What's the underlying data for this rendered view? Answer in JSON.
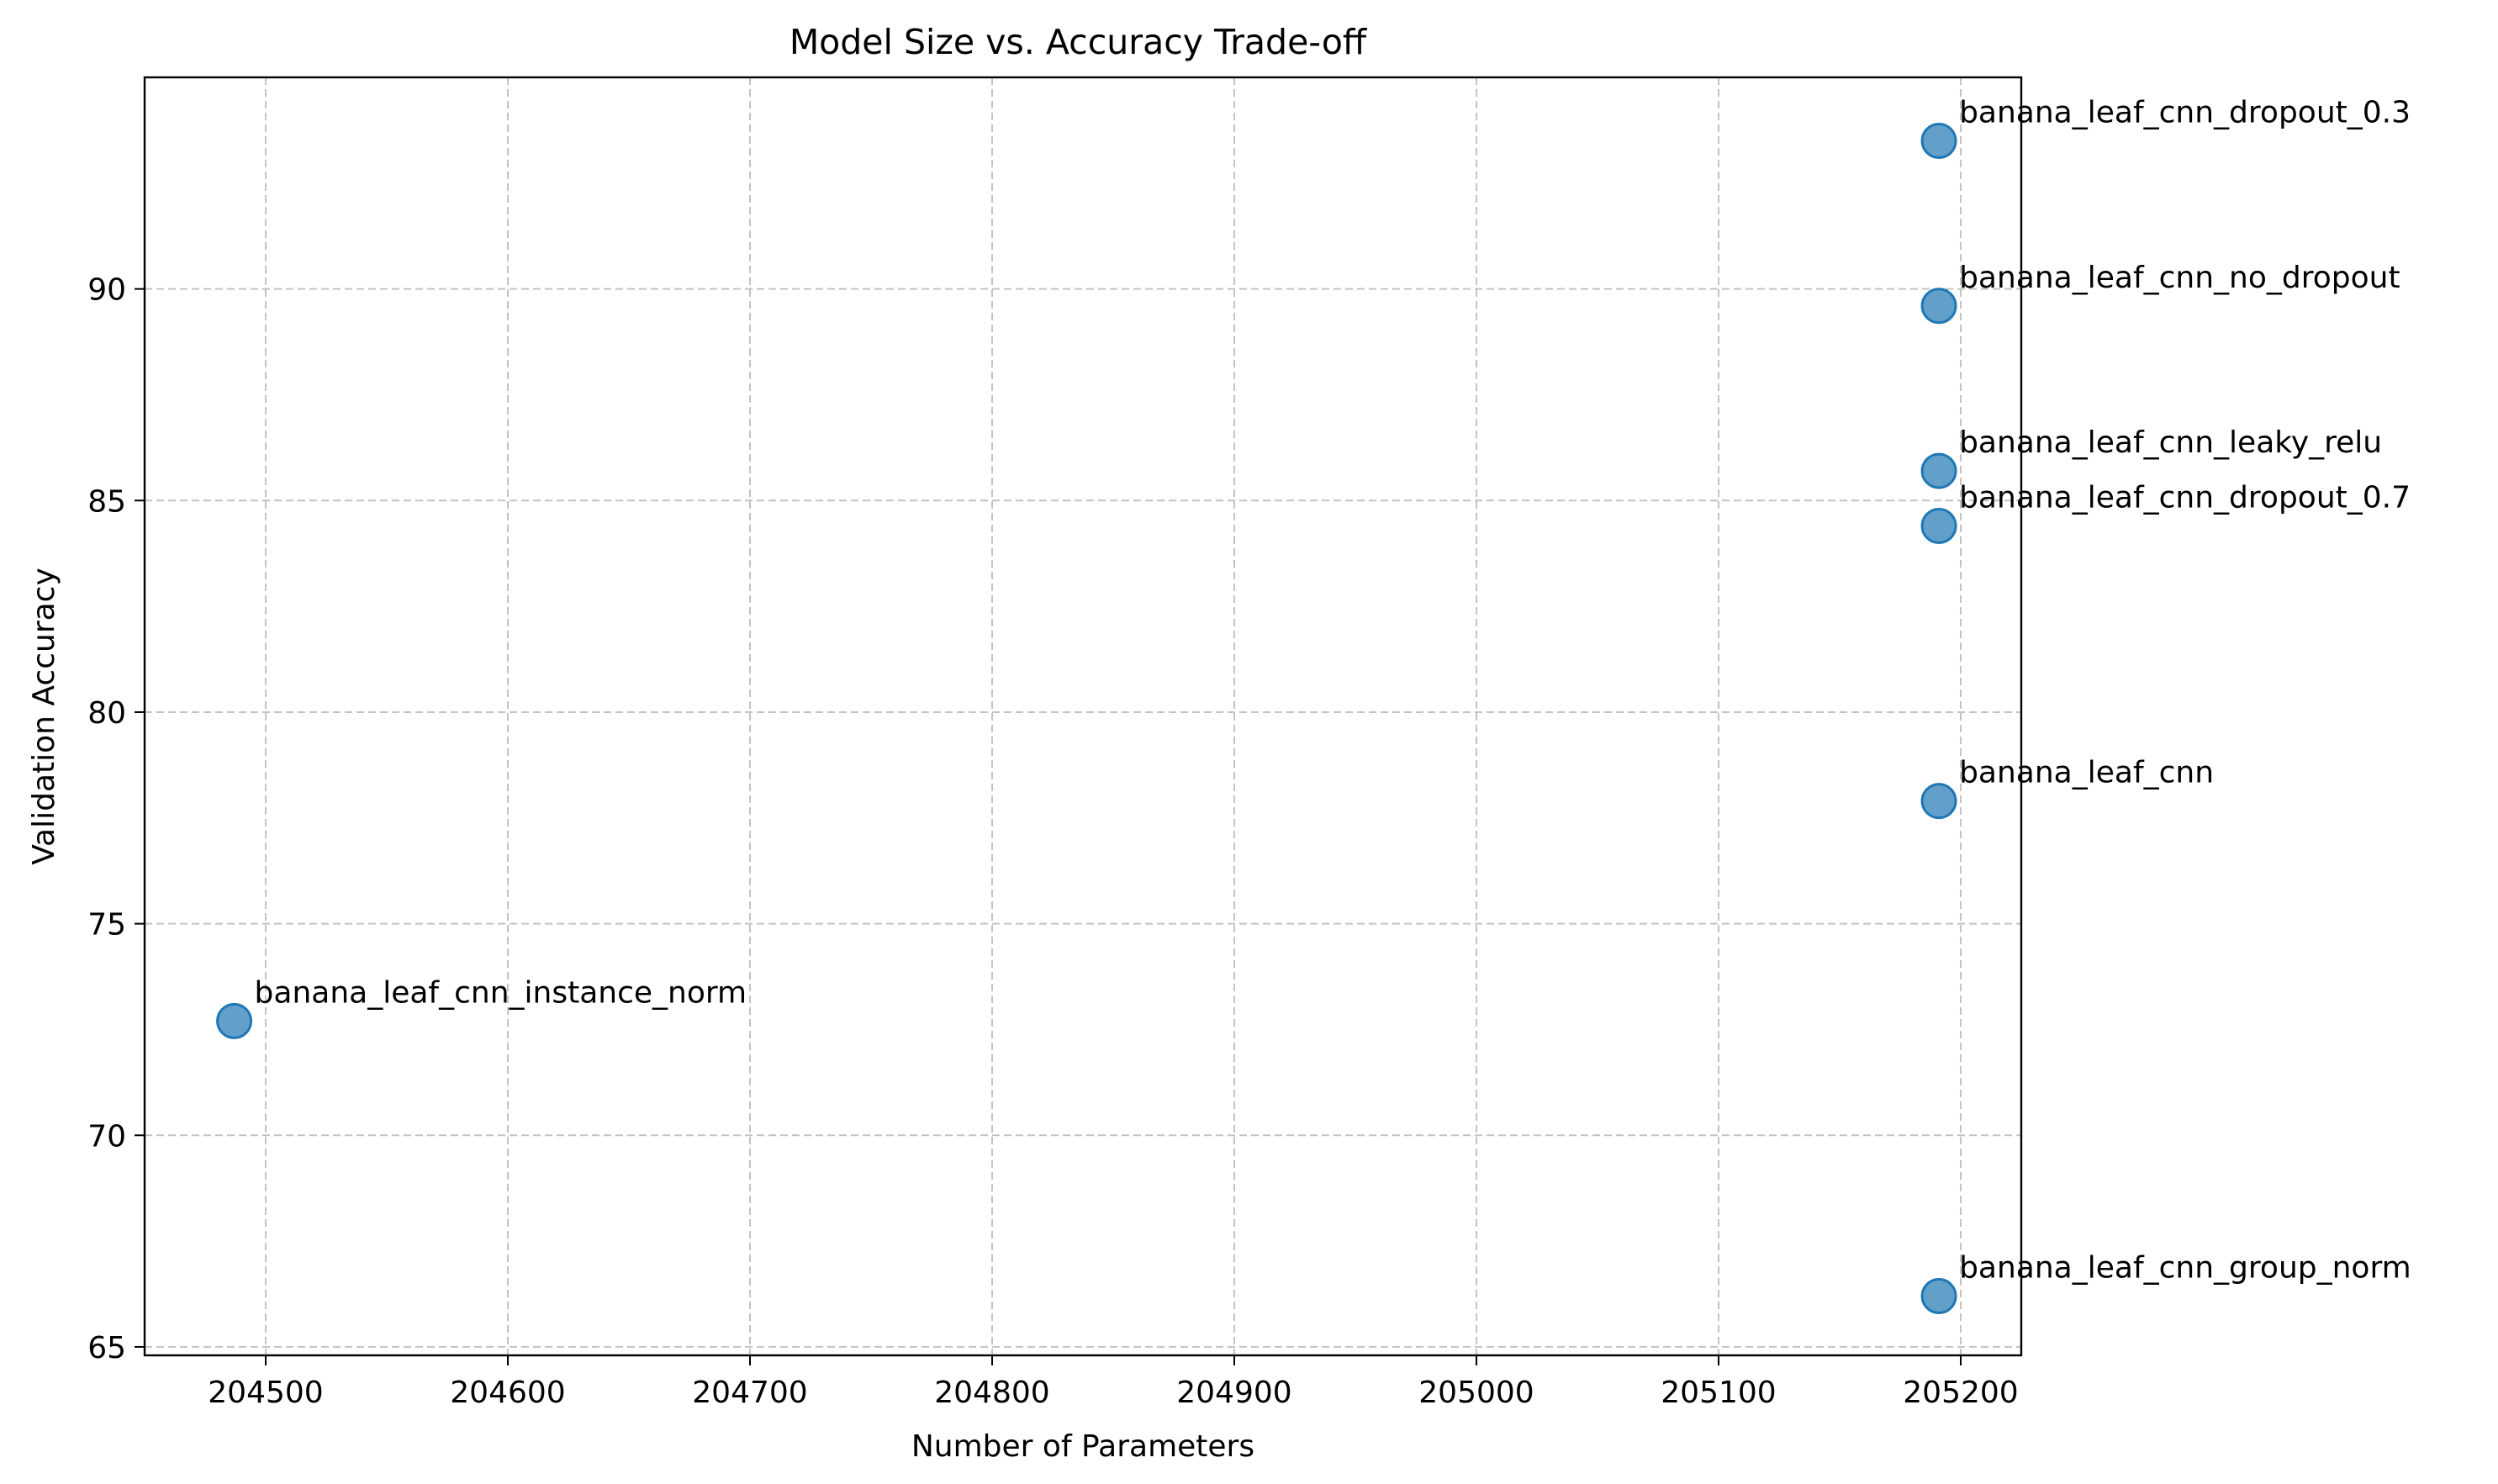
{
  "chart_data": {
    "type": "scatter",
    "title": "Model Size vs. Accuracy Trade-off",
    "xlabel": "Number of Parameters",
    "ylabel": "Validation Accuracy",
    "xlim": [
      204450,
      205225
    ],
    "ylim": [
      64.8,
      95.0
    ],
    "xticks": [
      204500,
      204600,
      204700,
      204800,
      204900,
      205000,
      205100,
      205200
    ],
    "yticks": [
      65,
      70,
      75,
      80,
      85,
      90
    ],
    "grid": true,
    "marker_color": "#1f77b4",
    "points": [
      {
        "label": "banana_leaf_cnn_dropout_0.3",
        "x": 205191,
        "y": 93.5
      },
      {
        "label": "banana_leaf_cnn_no_dropout",
        "x": 205191,
        "y": 89.6
      },
      {
        "label": "banana_leaf_cnn_leaky_relu",
        "x": 205191,
        "y": 85.7
      },
      {
        "label": "banana_leaf_cnn_dropout_0.7",
        "x": 205191,
        "y": 84.4
      },
      {
        "label": "banana_leaf_cnn",
        "x": 205191,
        "y": 77.9
      },
      {
        "label": "banana_leaf_cnn_instance_norm",
        "x": 204487,
        "y": 72.7
      },
      {
        "label": "banana_leaf_cnn_group_norm",
        "x": 205191,
        "y": 66.2
      }
    ]
  }
}
